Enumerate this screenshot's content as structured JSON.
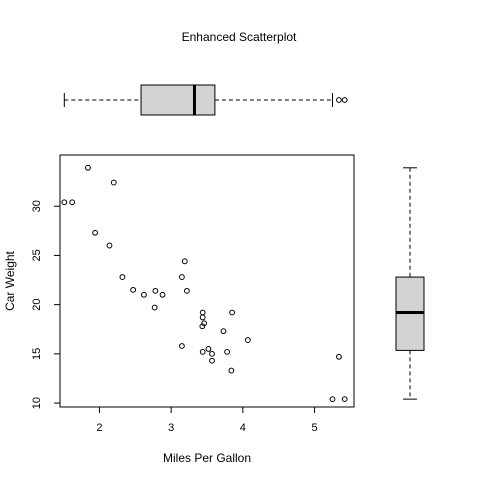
{
  "chart_data": [
    {
      "type": "scatter",
      "title": "Enhanced Scatterplot",
      "xlabel": "Miles Per Gallon",
      "ylabel": "Car Weight",
      "xlim": [
        1.45,
        5.55
      ],
      "ylim": [
        9.6,
        35.2
      ],
      "x_ticks": [
        2,
        3,
        4,
        5
      ],
      "y_ticks": [
        10,
        15,
        20,
        25,
        30
      ],
      "grid": false,
      "marker": "open-circle",
      "points": [
        {
          "x": 1.51,
          "y": 30.4
        },
        {
          "x": 1.62,
          "y": 30.4
        },
        {
          "x": 1.84,
          "y": 33.9
        },
        {
          "x": 1.94,
          "y": 27.3
        },
        {
          "x": 2.14,
          "y": 26.0
        },
        {
          "x": 2.2,
          "y": 32.4
        },
        {
          "x": 2.32,
          "y": 22.8
        },
        {
          "x": 2.47,
          "y": 21.5
        },
        {
          "x": 2.62,
          "y": 21.0
        },
        {
          "x": 2.77,
          "y": 19.7
        },
        {
          "x": 2.78,
          "y": 21.4
        },
        {
          "x": 2.88,
          "y": 21.0
        },
        {
          "x": 3.15,
          "y": 15.8
        },
        {
          "x": 3.15,
          "y": 22.8
        },
        {
          "x": 3.19,
          "y": 24.4
        },
        {
          "x": 3.22,
          "y": 21.4
        },
        {
          "x": 3.435,
          "y": 17.8
        },
        {
          "x": 3.44,
          "y": 18.7
        },
        {
          "x": 3.44,
          "y": 19.2
        },
        {
          "x": 3.44,
          "y": 15.2
        },
        {
          "x": 3.46,
          "y": 18.1
        },
        {
          "x": 3.52,
          "y": 15.5
        },
        {
          "x": 3.57,
          "y": 15.0
        },
        {
          "x": 3.57,
          "y": 14.3
        },
        {
          "x": 3.73,
          "y": 17.3
        },
        {
          "x": 3.78,
          "y": 15.2
        },
        {
          "x": 3.84,
          "y": 13.3
        },
        {
          "x": 3.85,
          "y": 19.2
        },
        {
          "x": 4.07,
          "y": 16.4
        },
        {
          "x": 5.25,
          "y": 10.4
        },
        {
          "x": 5.34,
          "y": 14.7
        },
        {
          "x": 5.42,
          "y": 10.4
        }
      ]
    },
    {
      "type": "boxplot",
      "orientation": "horizontal",
      "variable": "Miles Per Gallon",
      "box_fill": "#d3d3d3",
      "whisker_low": 1.51,
      "q1": 2.58,
      "median": 3.325,
      "q3": 3.61,
      "whisker_high": 5.25,
      "outliers": [
        5.34,
        5.42
      ]
    },
    {
      "type": "boxplot",
      "orientation": "vertical",
      "variable": "Car Weight",
      "box_fill": "#d3d3d3",
      "whisker_low": 10.4,
      "q1": 15.35,
      "median": 19.2,
      "q3": 22.8,
      "whisker_high": 33.9,
      "outliers": []
    }
  ]
}
